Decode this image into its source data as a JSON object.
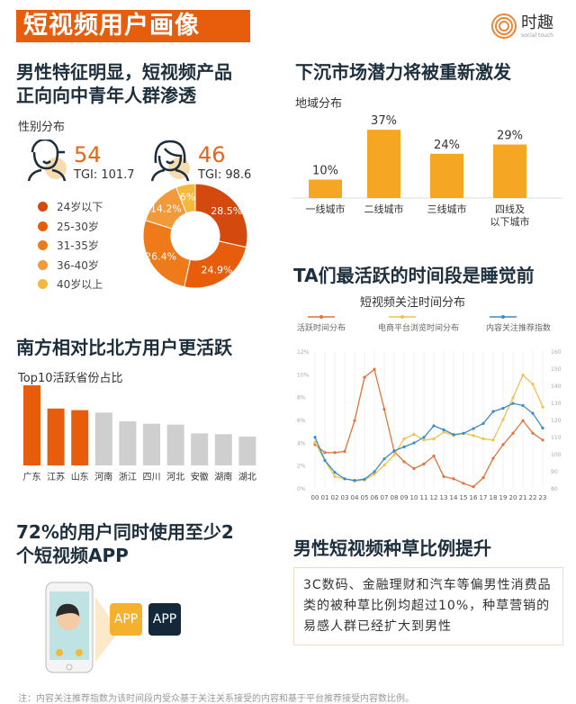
{
  "header": {
    "title": "短视频用户画像",
    "logo_text": "时趣",
    "logo_sub": "social touch"
  },
  "gender": {
    "title_line1": "男性特征明显，短视频产品",
    "title_line2": "正向向中青年人群渗透",
    "subtitle": "性别分布",
    "male": {
      "value": "54",
      "tgi": "TGI: 101.7"
    },
    "female": {
      "value": "46",
      "tgi": "TGI: 98.6"
    }
  },
  "region": {
    "title": "下沉市场潜力将被重新激发",
    "subtitle": "地域分布"
  },
  "province": {
    "title": "南方相对比北方用户更活跃",
    "subtitle": "Top10活跃省份占比"
  },
  "time": {
    "title": "TA们最活跃的时间段是睡觉前",
    "subtitle": "短视频关注时间分布"
  },
  "apps": {
    "title_line1": "72%的用户同时使用至少2",
    "title_line2": "个短视频APP",
    "app1": "APP",
    "app2": "APP"
  },
  "male_grass": {
    "title": "男性短视频种草比例提升",
    "text": "3C数码、金融理财和汽车等偏男性消费品类的被种草比例均超过10%，种草营销的易感人群已经扩大到男性"
  },
  "note": "注：内容关注推荐指数为该时间段内受众基于关注关系接受的内容和基于平台推荐接受内容数比例。",
  "colors": {
    "accent": "#e85d0c",
    "navy": "#1d2f3c",
    "gray_bar": "#cfcfcf",
    "yellow": "#f5a623"
  },
  "chart_data": [
    {
      "type": "pie",
      "donut": true,
      "categories": [
        "24岁以下",
        "25-30岁",
        "31-35岁",
        "36-40岁",
        "40岁以上"
      ],
      "values": [
        28.5,
        24.9,
        26.4,
        14.2,
        6
      ],
      "labels": [
        "28.5%",
        "24.9%",
        "26.4%",
        "14.2%",
        "6%"
      ],
      "colors": [
        "#d44a0e",
        "#e85d0c",
        "#ee7a1a",
        "#f29a3a",
        "#f5b83a"
      ],
      "legend": "left"
    },
    {
      "type": "bar",
      "categories": [
        "一线城市",
        "二线城市",
        "三线城市",
        "四线及以下城市"
      ],
      "values": [
        10,
        37,
        24,
        29
      ],
      "labels": [
        "10%",
        "37%",
        "24%",
        "29%"
      ],
      "color": "#f5a623"
    },
    {
      "type": "bar",
      "categories": [
        "广东",
        "江苏",
        "山东",
        "河南",
        "浙江",
        "四川",
        "河北",
        "安徽",
        "湖南",
        "湖北"
      ],
      "values": [
        100,
        71,
        69,
        66,
        55,
        52,
        51,
        40,
        39,
        36
      ],
      "highlight_count": 3,
      "colors": [
        "#e85d0c",
        "#cfcfcf"
      ]
    },
    {
      "type": "line",
      "x": [
        "00",
        "01",
        "02",
        "03",
        "04",
        "05",
        "06",
        "07",
        "08",
        "09",
        "10",
        "11",
        "12",
        "13",
        "14",
        "15",
        "16",
        "17",
        "18",
        "19",
        "20",
        "21",
        "22",
        "23"
      ],
      "y_left": {
        "ticks": [
          "0%",
          "2%",
          "4%",
          "6%",
          "8%",
          "10%",
          "12%"
        ],
        "range": [
          0,
          12
        ]
      },
      "y_right": {
        "ticks": [
          "80",
          "90",
          "100",
          "110",
          "120",
          "130",
          "140",
          "150",
          "160"
        ],
        "range": [
          80,
          160
        ]
      },
      "legend": "top",
      "series": [
        {
          "name": "活跃时间分布",
          "axis": "left",
          "color": "#e0743a",
          "values": [
            3.8,
            3.1,
            3.1,
            3.2,
            5.9,
            9.7,
            10.4,
            6.9,
            3.2,
            2.3,
            1.7,
            2.1,
            2.8,
            1.0,
            0.8,
            0.4,
            0.1,
            0.9,
            2.6,
            3.8,
            4.8,
            5.9,
            4.8,
            4.2
          ]
        },
        {
          "name": "电商平台浏览时间分布",
          "axis": "left",
          "color": "#f2c04e",
          "values": [
            4.0,
            2.4,
            1.0,
            0.8,
            0.6,
            0.7,
            1.2,
            2.0,
            2.9,
            4.3,
            4.7,
            4.2,
            4.3,
            4.9,
            4.6,
            4.8,
            4.6,
            4.3,
            4.2,
            6.0,
            7.9,
            9.9,
            9.1,
            7.1
          ]
        },
        {
          "name": "内容关注推荐指数",
          "axis": "right",
          "color": "#3b8cc4",
          "values": [
            109.6,
            96.1,
            89.1,
            85.3,
            84.4,
            85.1,
            89.5,
            97,
            101.7,
            104,
            106.3,
            109.6,
            116.3,
            114,
            111.2,
            111.9,
            114.7,
            117.7,
            124.7,
            126.6,
            129.4,
            128.2,
            123.6,
            115
          ]
        }
      ]
    }
  ]
}
